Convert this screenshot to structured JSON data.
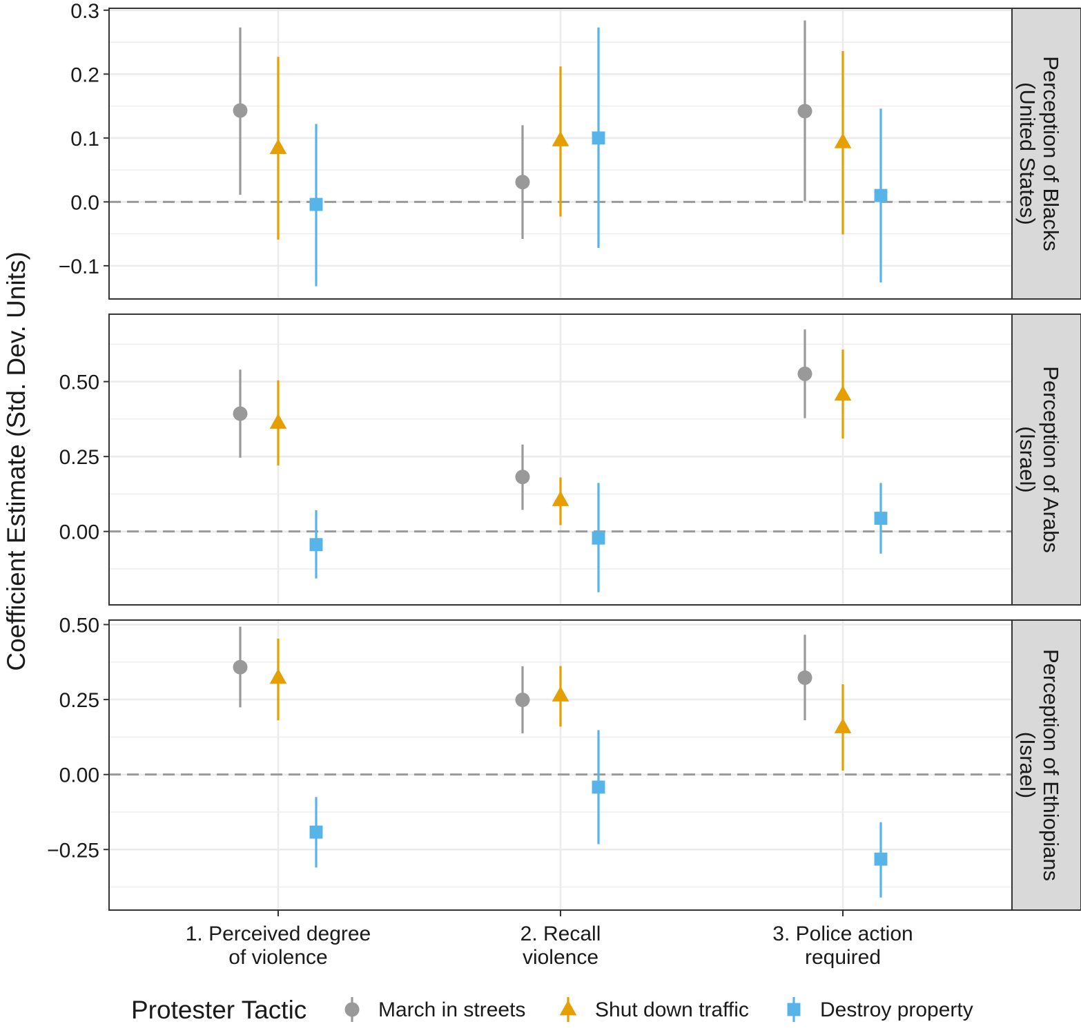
{
  "chart_data": {
    "type": "scatter",
    "subtype": "faceted coefficient plot with confidence intervals",
    "ylabel": "Coefficient Estimate (Std. Dev. Units)",
    "xlabel": "",
    "categories": [
      "1. Perceived degree\nof violence",
      "2. Recall\nviolence",
      "3. Police action\nrequired"
    ],
    "legend": {
      "title": "Protester Tactic",
      "position": "bottom",
      "entries": [
        {
          "name": "March in streets",
          "shape": "circle",
          "color": "#999999"
        },
        {
          "name": "Shut down traffic",
          "shape": "triangle",
          "color": "#E69F00"
        },
        {
          "name": "Destroy property",
          "shape": "square",
          "color": "#56B4E9"
        }
      ]
    },
    "reference_line": 0,
    "facets": [
      {
        "strip": "Perception of Blacks\n(United States)",
        "ylim": [
          -0.152,
          0.303
        ],
        "ticks": [
          -0.1,
          0.0,
          0.1,
          0.2,
          0.3
        ],
        "tick_labels": [
          "−0.1",
          "0.0",
          "0.1",
          "0.2",
          "0.3"
        ],
        "series": [
          {
            "name": "March in streets",
            "estimates": [
              0.143,
              0.031,
              0.142
            ],
            "lower": [
              0.011,
              -0.058,
              0.001
            ],
            "upper": [
              0.273,
              0.12,
              0.284
            ]
          },
          {
            "name": "Shut down traffic",
            "estimates": [
              0.084,
              0.096,
              0.093
            ],
            "lower": [
              -0.059,
              -0.023,
              -0.051
            ],
            "upper": [
              0.227,
              0.212,
              0.236
            ]
          },
          {
            "name": "Destroy property",
            "estimates": [
              -0.004,
              0.1,
              0.01
            ],
            "lower": [
              -0.132,
              -0.072,
              -0.126
            ],
            "upper": [
              0.122,
              0.273,
              0.146
            ]
          }
        ]
      },
      {
        "strip": "Perception of Arabs\n(Israel)",
        "ylim": [
          -0.245,
          0.725
        ],
        "ticks": [
          0.0,
          0.25,
          0.5
        ],
        "tick_labels": [
          "0.00",
          "0.25",
          "0.50"
        ],
        "series": [
          {
            "name": "March in streets",
            "estimates": [
              0.393,
              0.182,
              0.526
            ],
            "lower": [
              0.246,
              0.072,
              0.378
            ],
            "upper": [
              0.54,
              0.29,
              0.674
            ]
          },
          {
            "name": "Shut down traffic",
            "estimates": [
              0.362,
              0.104,
              0.456
            ],
            "lower": [
              0.22,
              0.021,
              0.31
            ],
            "upper": [
              0.504,
              0.18,
              0.607
            ]
          },
          {
            "name": "Destroy property",
            "estimates": [
              -0.044,
              -0.022,
              0.044
            ],
            "lower": [
              -0.157,
              -0.203,
              -0.074
            ],
            "upper": [
              0.071,
              0.162,
              0.162
            ]
          }
        ]
      },
      {
        "strip": "Perception of Ethiopians\n(Israel)",
        "ylim": [
          -0.452,
          0.515
        ],
        "ticks": [
          -0.25,
          0.0,
          0.25,
          0.5
        ],
        "tick_labels": [
          "−0.25",
          "0.00",
          "0.25",
          "0.50"
        ],
        "series": [
          {
            "name": "March in streets",
            "estimates": [
              0.358,
              0.249,
              0.323
            ],
            "lower": [
              0.224,
              0.137,
              0.181
            ],
            "upper": [
              0.493,
              0.361,
              0.466
            ]
          },
          {
            "name": "Shut down traffic",
            "estimates": [
              0.322,
              0.263,
              0.157
            ],
            "lower": [
              0.181,
              0.16,
              0.013
            ],
            "upper": [
              0.453,
              0.362,
              0.301
            ]
          },
          {
            "name": "Destroy property",
            "estimates": [
              -0.192,
              -0.042,
              -0.282
            ],
            "lower": [
              -0.31,
              -0.232,
              -0.41
            ],
            "upper": [
              -0.075,
              0.148,
              -0.159
            ]
          }
        ]
      }
    ]
  }
}
